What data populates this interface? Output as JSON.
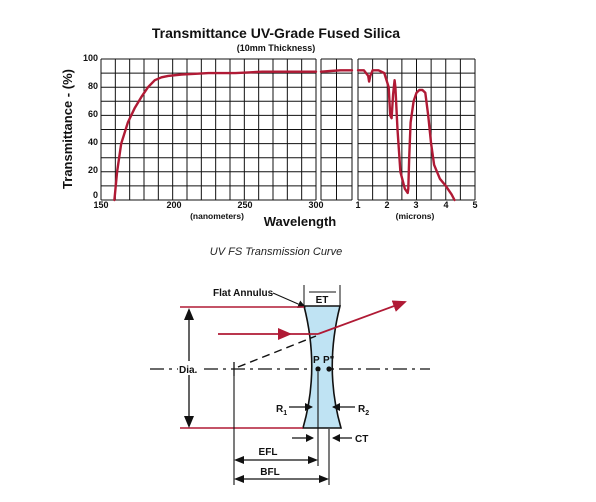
{
  "chart": {
    "title": "Transmittance UV-Grade Fused Silica",
    "subtitle": "(10mm Thickness)",
    "y_label": "Transmittance - (%)",
    "x_label": "Wavelength",
    "x_unit_nm": "(nanometers)",
    "x_unit_um": "(microns)",
    "caption": "UV FS Transmission Curve"
  },
  "chart_data": {
    "type": "line",
    "title": "Transmittance UV-Grade Fused Silica",
    "subtitle": "(10mm Thickness)",
    "xlabel": "Wavelength",
    "ylabel": "Transmittance - (%)",
    "ylim": [
      0,
      100
    ],
    "yticks": [
      0,
      20,
      40,
      60,
      80,
      100
    ],
    "grid": true,
    "panels": [
      {
        "unit": "(nanometers)",
        "xlim": [
          150,
          310
        ],
        "xticks": [
          150,
          200,
          250,
          300
        ],
        "x": [
          160,
          162,
          165,
          170,
          175,
          180,
          185,
          190,
          195,
          200,
          210,
          220,
          230,
          250,
          260,
          270,
          280,
          300,
          310
        ],
        "y": [
          0,
          20,
          40,
          55,
          65,
          73,
          80,
          85,
          87,
          88,
          89,
          89.5,
          90,
          90,
          90.5,
          91,
          91,
          91,
          91
        ]
      },
      {
        "unit": "",
        "xlim": [
          0.31,
          0.93
        ],
        "xticks": [],
        "x": [
          0.31,
          0.5,
          0.7,
          0.93
        ],
        "y": [
          91,
          91.5,
          92,
          92
        ]
      },
      {
        "unit": "(microns)",
        "xlim": [
          1,
          5
        ],
        "xticks": [
          1,
          2,
          3,
          4,
          5
        ],
        "x": [
          1.0,
          1.2,
          1.35,
          1.38,
          1.42,
          1.5,
          1.7,
          1.9,
          2.05,
          2.1,
          2.15,
          2.2,
          2.25,
          2.28,
          2.35,
          2.45,
          2.6,
          2.7,
          2.72,
          2.75,
          2.8,
          2.9,
          3.0,
          3.1,
          3.2,
          3.3,
          3.4,
          3.5,
          3.6,
          3.8,
          4.0,
          4.2,
          4.3
        ],
        "y": [
          92,
          92,
          88,
          84,
          88,
          92,
          92,
          90,
          80,
          60,
          58,
          75,
          85,
          80,
          50,
          20,
          8,
          5,
          8,
          30,
          55,
          70,
          76,
          78,
          78,
          76,
          60,
          40,
          25,
          15,
          10,
          4,
          0
        ]
      }
    ]
  },
  "lens": {
    "labels": {
      "flat_annulus": "Flat Annulus",
      "et": "ET",
      "dia": "Dia.",
      "pp_left": "P",
      "pp_right": "P\"",
      "r1": "R",
      "r1_sub": "1",
      "r2": "R",
      "r2_sub": "2",
      "ct": "CT",
      "efl": "EFL",
      "bfl": "BFL"
    },
    "colors": {
      "lens_fill": "#bfe3f3",
      "ray": "#b01a35",
      "outline": "#111111"
    }
  }
}
